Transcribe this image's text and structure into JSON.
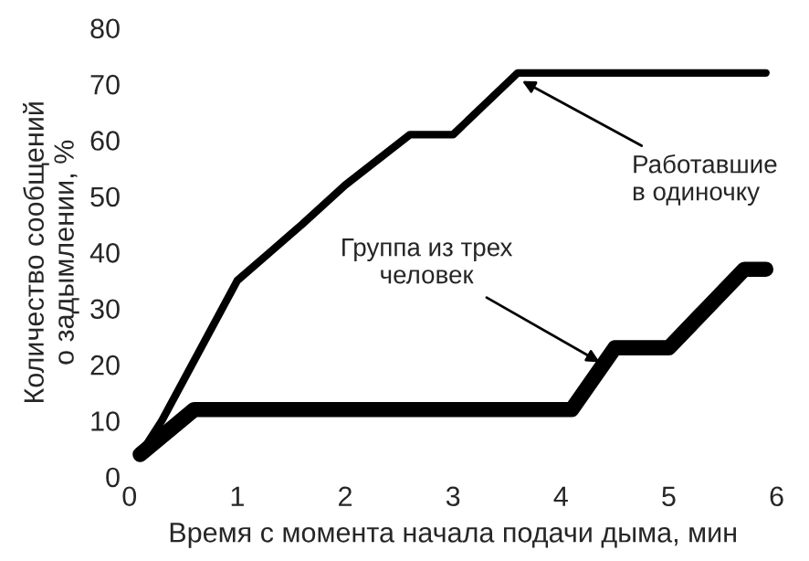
{
  "chart_data": {
    "type": "line",
    "xlabel": "Время с момента начала подачи дыма, мин",
    "ylabel": "Количество сообщений\nо задымлении, %",
    "series": [
      {
        "color": "#000000",
        "x": [
          0.1,
          0.3,
          1,
          1.3,
          1.6,
          2,
          2.6,
          3,
          3.6,
          5.9
        ],
        "values": [
          4,
          10,
          35,
          40,
          45,
          52,
          61,
          61,
          72,
          72
        ]
      },
      {
        "color": "#000000",
        "x": [
          0.1,
          0.6,
          4.1,
          4.5,
          5,
          5.7,
          5.9
        ],
        "values": [
          4,
          12,
          12,
          23,
          23,
          37,
          37
        ]
      }
    ],
    "annotations": [
      {
        "text": "Работавшие\nв одиночку",
        "x": 3.6,
        "y": 71
      },
      {
        "text": "Группа из трех\nчеловек",
        "x": 4.4,
        "y": 20
      }
    ],
    "xlim": [
      0,
      6
    ],
    "ylim": [
      0,
      80
    ],
    "xticks": [
      0,
      1,
      2,
      3,
      4,
      5,
      6
    ],
    "yticks": [
      0,
      10,
      20,
      30,
      40,
      50,
      60,
      70,
      80
    ],
    "grid": false,
    "legend": false,
    "marker": "none",
    "line_style": "solid"
  }
}
